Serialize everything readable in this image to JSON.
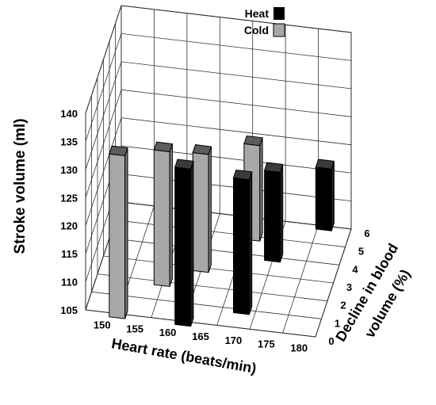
{
  "chart_data": {
    "type": "bar",
    "title": "",
    "xlabel": "Heart rate (beats/min)",
    "ylabel": "Stroke volume (ml)",
    "zlabel": "Decline in blood volume (%)",
    "z_label_lines": [
      "Decline in blood",
      "volume (%)"
    ],
    "x_ticks": [
      150,
      155,
      160,
      165,
      170,
      175,
      180
    ],
    "y_ticks": [
      105,
      110,
      115,
      120,
      125,
      130,
      135,
      140
    ],
    "z_ticks": [
      0,
      1,
      2,
      3,
      4,
      5,
      6
    ],
    "ylim": [
      105,
      140
    ],
    "grid": true,
    "legend": {
      "placement": "top",
      "entries": [
        {
          "name": "Heat",
          "color": "#000000"
        },
        {
          "name": "Cold",
          "color": "#a8a8a8"
        }
      ]
    },
    "series": [
      {
        "name": "Heat",
        "color": "#000000",
        "points": [
          {
            "heart_rate": 160,
            "decline_percent": 0,
            "stroke_volume": 133
          },
          {
            "heart_rate": 168,
            "decline_percent": 1,
            "stroke_volume": 129
          },
          {
            "heart_rate": 170,
            "decline_percent": 4,
            "stroke_volume": 121
          },
          {
            "heart_rate": 176,
            "decline_percent": 6,
            "stroke_volume": 116
          }
        ]
      },
      {
        "name": "Cold",
        "color": "#a8a8a8",
        "points": [
          {
            "heart_rate": 150,
            "decline_percent": 0,
            "stroke_volume": 134
          },
          {
            "heart_rate": 155,
            "decline_percent": 2,
            "stroke_volume": 129
          },
          {
            "heart_rate": 160,
            "decline_percent": 3,
            "stroke_volume": 126
          },
          {
            "heart_rate": 166,
            "decline_percent": 5,
            "stroke_volume": 122
          }
        ]
      }
    ]
  }
}
